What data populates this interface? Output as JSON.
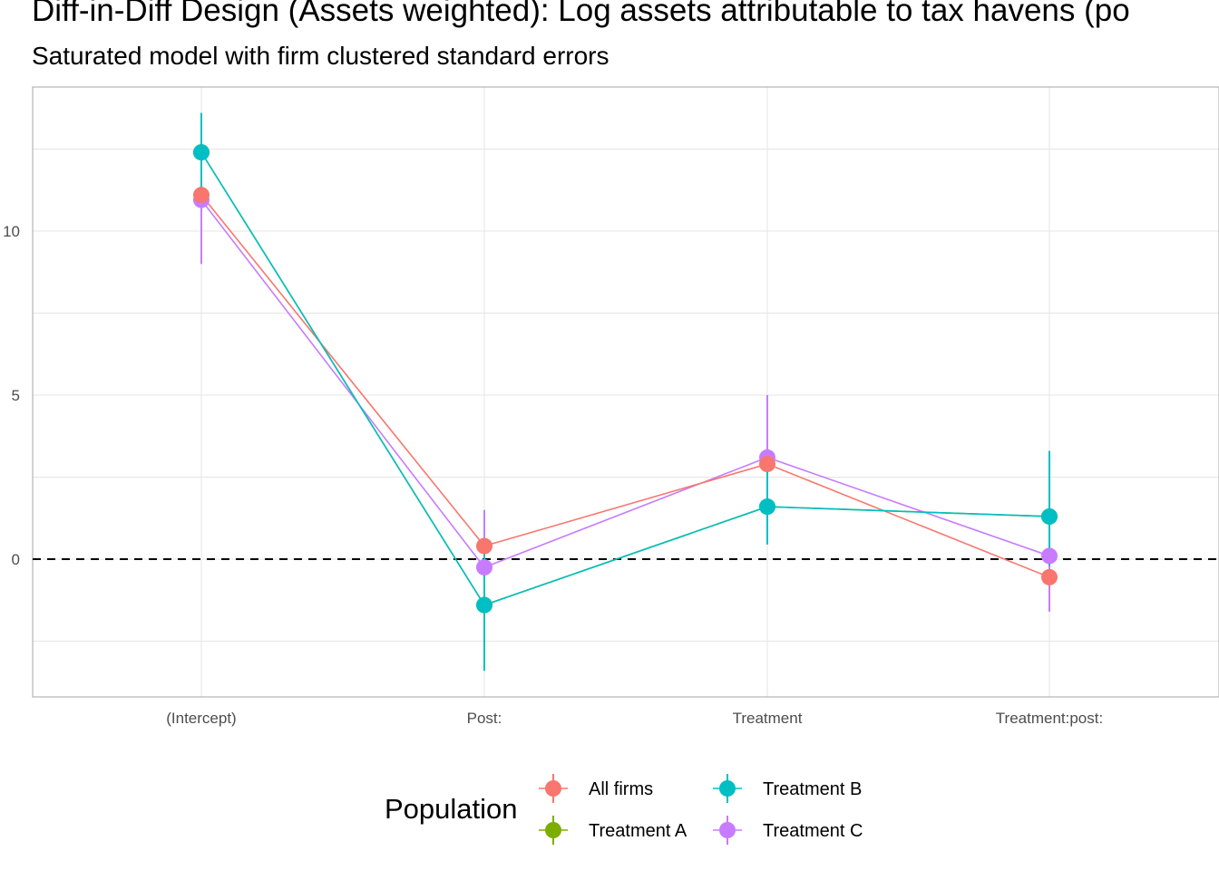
{
  "title": "Diff-in-Diff Design (Assets weighted): Log assets attributable to tax havens (po",
  "subtitle": "Saturated model with firm clustered standard errors",
  "legend_title": "Population",
  "legend_position": "bottom",
  "colors": {
    "All firms": "#F8766D",
    "Treatment A": "#7CAE00",
    "Treatment B": "#00BFC4",
    "Treatment C": "#C77CFF"
  },
  "chart_data": {
    "type": "line",
    "x": [
      "(Intercept)",
      "Post:",
      "Treatment",
      "Treatment:post:"
    ],
    "ylim": [
      -4.2,
      14.4
    ],
    "yticks": [
      0,
      5,
      10
    ],
    "grid": true,
    "reference_line": 0,
    "series": [
      {
        "name": "All firms",
        "values": [
          11.1,
          0.4,
          2.9,
          -0.55
        ],
        "lower": [
          11.1,
          0.4,
          2.9,
          -0.55
        ],
        "upper": [
          11.1,
          0.4,
          2.9,
          -0.55
        ]
      },
      {
        "name": "Treatment A",
        "values": [
          12.4,
          -1.4,
          1.6,
          1.3
        ],
        "lower": [
          11.2,
          -3.4,
          0.45,
          -0.2
        ],
        "upper": [
          13.6,
          0.4,
          2.7,
          3.3
        ]
      },
      {
        "name": "Treatment B",
        "values": [
          12.4,
          -1.4,
          1.6,
          1.3
        ],
        "lower": [
          11.2,
          -3.4,
          0.45,
          -0.2
        ],
        "upper": [
          13.6,
          0.4,
          2.7,
          3.3
        ]
      },
      {
        "name": "Treatment C",
        "values": [
          10.95,
          -0.25,
          3.1,
          0.1
        ],
        "lower": [
          9.0,
          -2.0,
          1.2,
          -1.6
        ],
        "upper": [
          12.9,
          1.5,
          5.0,
          1.6
        ]
      }
    ]
  }
}
